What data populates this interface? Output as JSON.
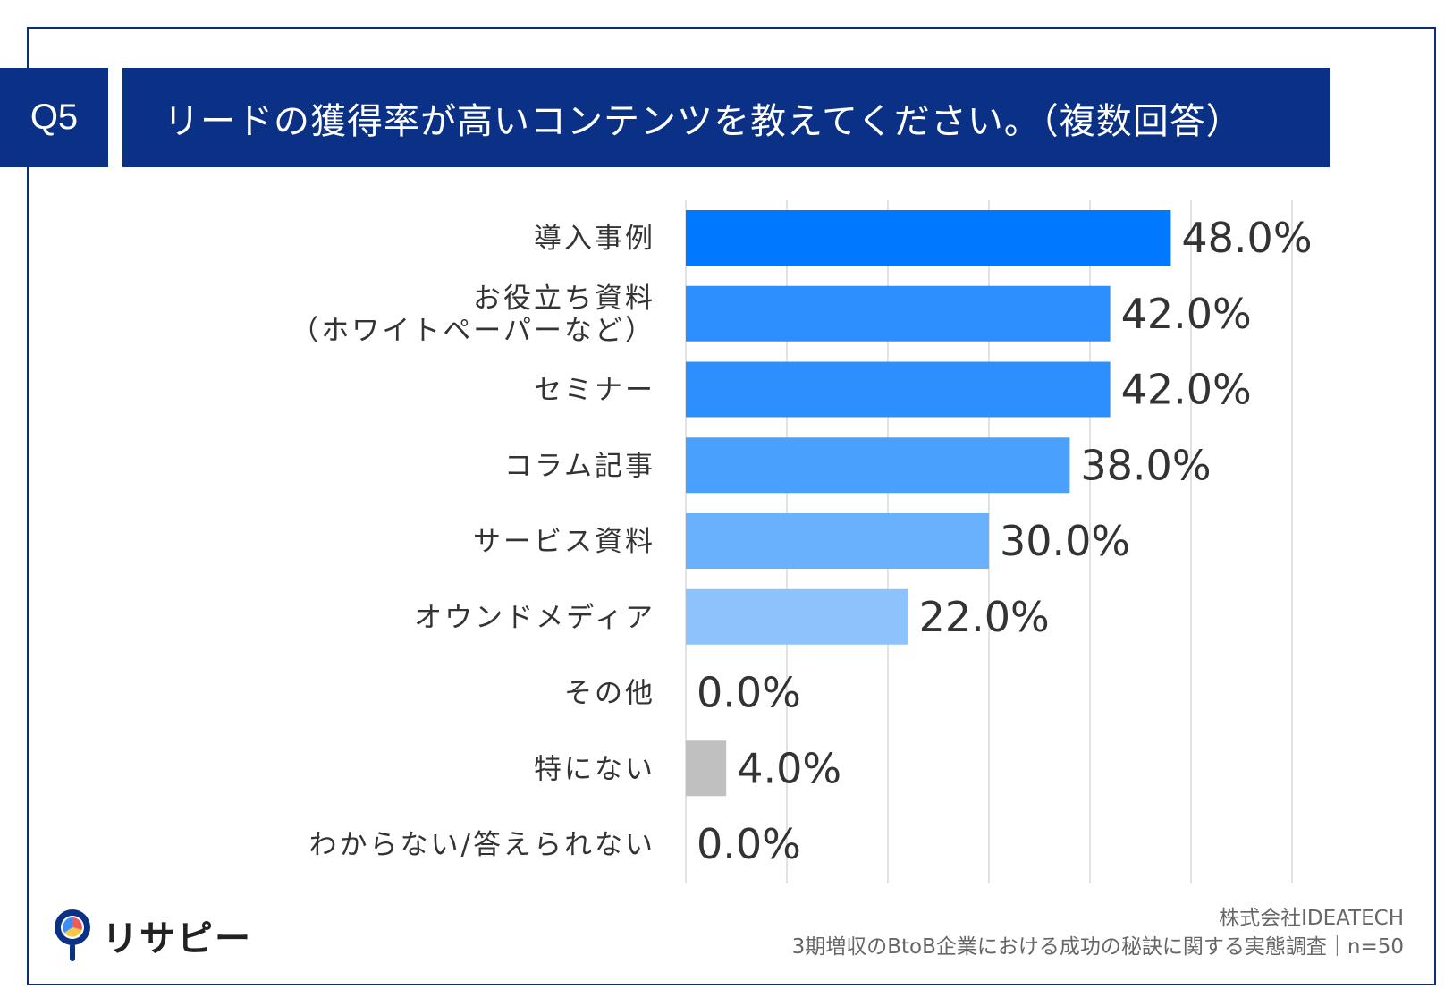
{
  "header": {
    "badge": "Q5",
    "question": "リードの獲得率が高いコンテンツを教えてください。（複数回答）"
  },
  "chart_data": {
    "type": "bar",
    "orientation": "horizontal",
    "categories": [
      "導入事例",
      "お役立ち資料\n（ホワイトペーパーなど）",
      "セミナー",
      "コラム記事",
      "サービス資料",
      "オウンドメディア",
      "その他",
      "特にない",
      "わからない/答えられない"
    ],
    "values": [
      48.0,
      42.0,
      42.0,
      38.0,
      30.0,
      22.0,
      0.0,
      4.0,
      0.0
    ],
    "value_labels": [
      "48.0%",
      "42.0%",
      "42.0%",
      "38.0%",
      "30.0%",
      "22.0%",
      "0.0%",
      "4.0%",
      "0.0%"
    ],
    "colors": [
      "#0078ff",
      "#2d8ffe",
      "#2d8ffe",
      "#4aa0fd",
      "#6ab1fd",
      "#8cc3fd",
      "#c0c0c0",
      "#c0c0c0",
      "#c0c0c0"
    ],
    "xlim": [
      0,
      60
    ],
    "grid": true
  },
  "logo": {
    "name": "リサピー",
    "icon": "pin-icon"
  },
  "footer": {
    "company": "株式会社IDEATECH",
    "survey": "3期増収のBtoB企業における成功の秘訣に関する実態調査｜n=50"
  }
}
